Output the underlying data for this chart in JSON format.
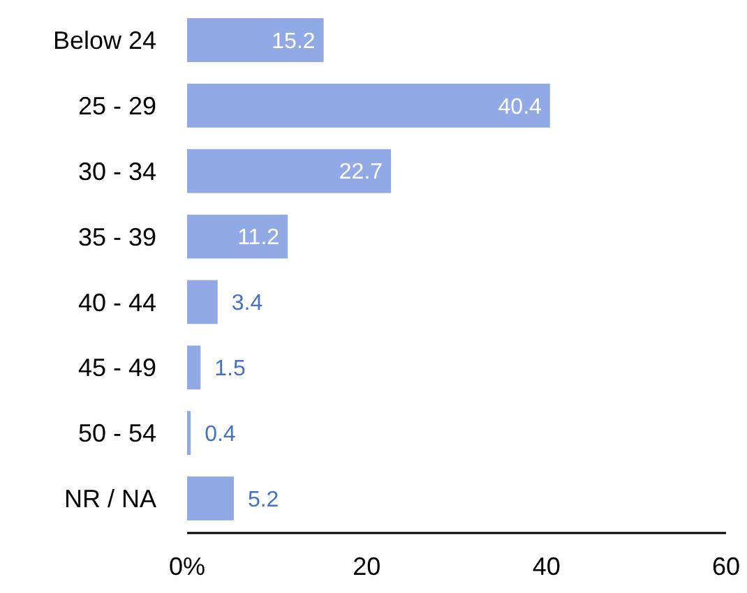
{
  "chart_data": {
    "type": "bar",
    "orientation": "horizontal",
    "categories": [
      "Below 24",
      "25 - 29",
      "30 - 34",
      "35 - 39",
      "40 - 44",
      "45 - 49",
      "50 - 54",
      "NR / NA"
    ],
    "values": [
      15.2,
      40.4,
      22.7,
      11.2,
      3.4,
      1.5,
      0.4,
      5.2
    ],
    "color": "#91aae6",
    "data_labels": true,
    "xlim": [
      0,
      60
    ],
    "xticks": [
      {
        "value": 0,
        "label": "0%"
      },
      20,
      40,
      60
    ]
  }
}
